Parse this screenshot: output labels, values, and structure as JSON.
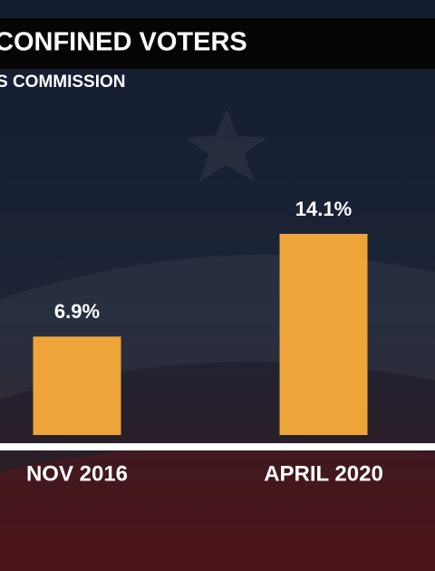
{
  "chart_data": {
    "type": "bar",
    "title": "CONFINED VOTERS",
    "subtitle": "S COMMISSION",
    "categories": [
      "NOV 2016",
      "APRIL 2020"
    ],
    "values": [
      6.9,
      14.1
    ],
    "value_labels": [
      "6.9%",
      "14.1%"
    ],
    "color": "#eda53a"
  }
}
